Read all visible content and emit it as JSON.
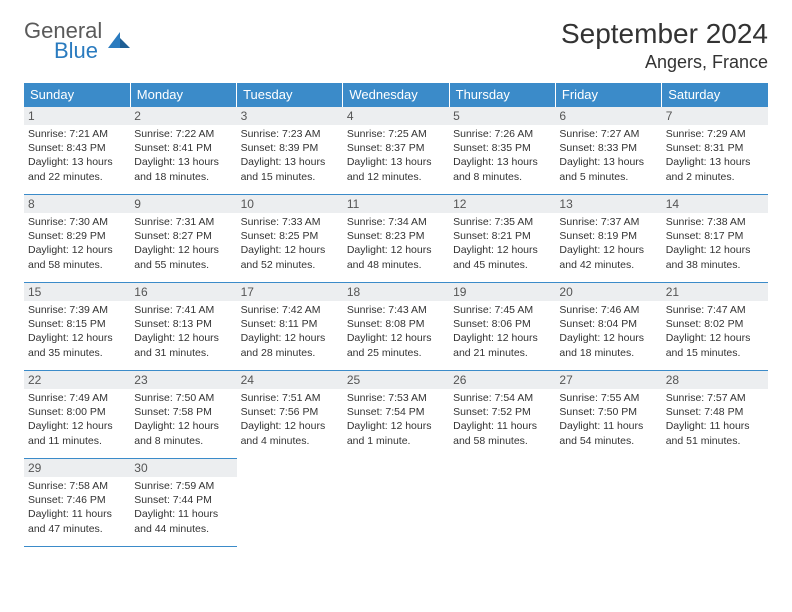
{
  "logo": {
    "general": "General",
    "blue": "Blue"
  },
  "title": "September 2024",
  "location": "Angers, France",
  "colors": {
    "header_bg": "#3b8bc9",
    "header_text": "#ffffff",
    "daynum_bg": "#eceef0",
    "border": "#3b8bc9",
    "brand_blue": "#2a7bbf"
  },
  "weekdays": [
    "Sunday",
    "Monday",
    "Tuesday",
    "Wednesday",
    "Thursday",
    "Friday",
    "Saturday"
  ],
  "days": [
    {
      "n": "1",
      "sr": "7:21 AM",
      "ss": "8:43 PM",
      "dl": "13 hours and 22 minutes."
    },
    {
      "n": "2",
      "sr": "7:22 AM",
      "ss": "8:41 PM",
      "dl": "13 hours and 18 minutes."
    },
    {
      "n": "3",
      "sr": "7:23 AM",
      "ss": "8:39 PM",
      "dl": "13 hours and 15 minutes."
    },
    {
      "n": "4",
      "sr": "7:25 AM",
      "ss": "8:37 PM",
      "dl": "13 hours and 12 minutes."
    },
    {
      "n": "5",
      "sr": "7:26 AM",
      "ss": "8:35 PM",
      "dl": "13 hours and 8 minutes."
    },
    {
      "n": "6",
      "sr": "7:27 AM",
      "ss": "8:33 PM",
      "dl": "13 hours and 5 minutes."
    },
    {
      "n": "7",
      "sr": "7:29 AM",
      "ss": "8:31 PM",
      "dl": "13 hours and 2 minutes."
    },
    {
      "n": "8",
      "sr": "7:30 AM",
      "ss": "8:29 PM",
      "dl": "12 hours and 58 minutes."
    },
    {
      "n": "9",
      "sr": "7:31 AM",
      "ss": "8:27 PM",
      "dl": "12 hours and 55 minutes."
    },
    {
      "n": "10",
      "sr": "7:33 AM",
      "ss": "8:25 PM",
      "dl": "12 hours and 52 minutes."
    },
    {
      "n": "11",
      "sr": "7:34 AM",
      "ss": "8:23 PM",
      "dl": "12 hours and 48 minutes."
    },
    {
      "n": "12",
      "sr": "7:35 AM",
      "ss": "8:21 PM",
      "dl": "12 hours and 45 minutes."
    },
    {
      "n": "13",
      "sr": "7:37 AM",
      "ss": "8:19 PM",
      "dl": "12 hours and 42 minutes."
    },
    {
      "n": "14",
      "sr": "7:38 AM",
      "ss": "8:17 PM",
      "dl": "12 hours and 38 minutes."
    },
    {
      "n": "15",
      "sr": "7:39 AM",
      "ss": "8:15 PM",
      "dl": "12 hours and 35 minutes."
    },
    {
      "n": "16",
      "sr": "7:41 AM",
      "ss": "8:13 PM",
      "dl": "12 hours and 31 minutes."
    },
    {
      "n": "17",
      "sr": "7:42 AM",
      "ss": "8:11 PM",
      "dl": "12 hours and 28 minutes."
    },
    {
      "n": "18",
      "sr": "7:43 AM",
      "ss": "8:08 PM",
      "dl": "12 hours and 25 minutes."
    },
    {
      "n": "19",
      "sr": "7:45 AM",
      "ss": "8:06 PM",
      "dl": "12 hours and 21 minutes."
    },
    {
      "n": "20",
      "sr": "7:46 AM",
      "ss": "8:04 PM",
      "dl": "12 hours and 18 minutes."
    },
    {
      "n": "21",
      "sr": "7:47 AM",
      "ss": "8:02 PM",
      "dl": "12 hours and 15 minutes."
    },
    {
      "n": "22",
      "sr": "7:49 AM",
      "ss": "8:00 PM",
      "dl": "12 hours and 11 minutes."
    },
    {
      "n": "23",
      "sr": "7:50 AM",
      "ss": "7:58 PM",
      "dl": "12 hours and 8 minutes."
    },
    {
      "n": "24",
      "sr": "7:51 AM",
      "ss": "7:56 PM",
      "dl": "12 hours and 4 minutes."
    },
    {
      "n": "25",
      "sr": "7:53 AM",
      "ss": "7:54 PM",
      "dl": "12 hours and 1 minute."
    },
    {
      "n": "26",
      "sr": "7:54 AM",
      "ss": "7:52 PM",
      "dl": "11 hours and 58 minutes."
    },
    {
      "n": "27",
      "sr": "7:55 AM",
      "ss": "7:50 PM",
      "dl": "11 hours and 54 minutes."
    },
    {
      "n": "28",
      "sr": "7:57 AM",
      "ss": "7:48 PM",
      "dl": "11 hours and 51 minutes."
    },
    {
      "n": "29",
      "sr": "7:58 AM",
      "ss": "7:46 PM",
      "dl": "11 hours and 47 minutes."
    },
    {
      "n": "30",
      "sr": "7:59 AM",
      "ss": "7:44 PM",
      "dl": "11 hours and 44 minutes."
    }
  ],
  "labels": {
    "sunrise": "Sunrise:",
    "sunset": "Sunset:",
    "daylight": "Daylight:"
  }
}
